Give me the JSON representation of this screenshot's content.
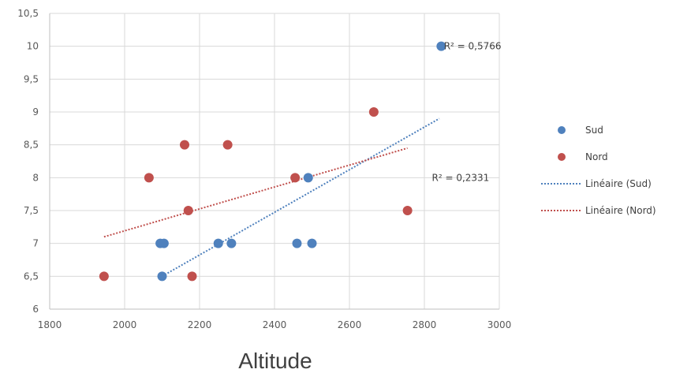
{
  "chart_data": {
    "type": "scatter",
    "title": "",
    "xlabel": "Altitude",
    "ylabel": "",
    "xlim": [
      1800,
      3000
    ],
    "ylim": [
      6,
      10.5
    ],
    "x_ticks": [
      "1800",
      "2000",
      "2200",
      "2400",
      "2600",
      "2800",
      "3000"
    ],
    "y_ticks": [
      "6",
      "6,5",
      "7",
      "7,5",
      "8",
      "8,5",
      "9",
      "9,5",
      "10",
      "10,5"
    ],
    "grid": true,
    "legend_position": "right",
    "series": [
      {
        "name": "Sud",
        "color": "#4f81bd",
        "points": [
          {
            "x": 2095,
            "y": 7
          },
          {
            "x": 2105,
            "y": 7
          },
          {
            "x": 2100,
            "y": 6.5
          },
          {
            "x": 2250,
            "y": 7
          },
          {
            "x": 2285,
            "y": 7
          },
          {
            "x": 2460,
            "y": 7
          },
          {
            "x": 2490,
            "y": 8
          },
          {
            "x": 2500,
            "y": 7
          },
          {
            "x": 2845,
            "y": 10
          }
        ]
      },
      {
        "name": "Nord",
        "color": "#c0504d",
        "points": [
          {
            "x": 1945,
            "y": 6.5
          },
          {
            "x": 2065,
            "y": 8
          },
          {
            "x": 2160,
            "y": 8.5
          },
          {
            "x": 2170,
            "y": 7.5
          },
          {
            "x": 2180,
            "y": 6.5
          },
          {
            "x": 2275,
            "y": 8.5
          },
          {
            "x": 2455,
            "y": 8
          },
          {
            "x": 2665,
            "y": 9
          },
          {
            "x": 2755,
            "y": 7.5
          }
        ]
      }
    ],
    "trendlines": [
      {
        "name": "Linéaire (Sud)",
        "series": "Sud",
        "color": "#4f81bd",
        "start": {
          "x": 2100,
          "y": 6.5
        },
        "end": {
          "x": 2840,
          "y": 8.9
        },
        "r2_label": "R² = 0,5766"
      },
      {
        "name": "Linéaire (Nord)",
        "series": "Nord",
        "color": "#c0504d",
        "start": {
          "x": 1945,
          "y": 7.1
        },
        "end": {
          "x": 2755,
          "y": 8.45
        },
        "r2_label": "R² = 0,2331"
      }
    ]
  }
}
